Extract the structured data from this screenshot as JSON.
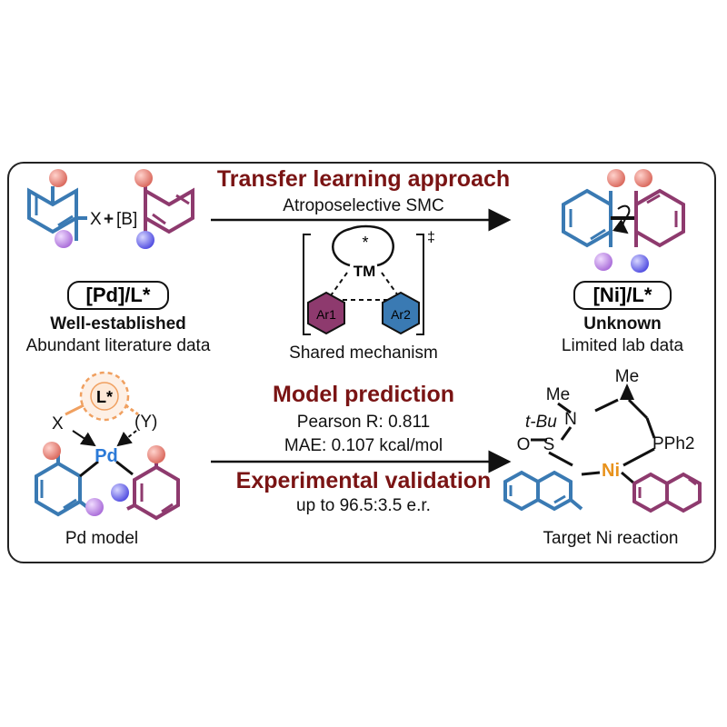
{
  "top": {
    "heading": "Transfer learning approach",
    "subheading": "Atroposelective SMC",
    "left_reagent_x": "X",
    "left_reagent_plus": "+",
    "left_reagent_b": "[B]",
    "left_catalyst": "[Pd]/L*",
    "left_status": "Well-established",
    "left_note": "Abundant literature data",
    "right_catalyst": "[Ni]/L*",
    "right_status": "Unknown",
    "right_note": "Limited lab data",
    "ts_metal": "TM",
    "ts_star": "*",
    "ts_dagger": "‡",
    "ts_ar1": "Ar1",
    "ts_ar2": "Ar2",
    "ts_caption": "Shared mechanism"
  },
  "bottom": {
    "model_heading": "Model prediction",
    "pearson": "Pearson R: 0.811",
    "mae": "MAE: 0.107 kcal/mol",
    "validation_heading": "Experimental validation",
    "er": "up to 96.5:3.5 e.r.",
    "pd_ligand": "L*",
    "pd_x": "X",
    "pd_y": "(Y)",
    "pd_metal": "Pd",
    "pd_caption": "Pd model",
    "ni_me1": "Me",
    "ni_me2": "Me",
    "ni_tbu": "t-Bu",
    "ni_n": "N",
    "ni_o": "O",
    "ni_s": "S",
    "ni_pph2": "PPh2",
    "ni_metal": "Ni",
    "ni_caption": "Target Ni reaction"
  },
  "colors": {
    "heading": "#7a1414",
    "ring_blue": "#3a7ab3",
    "ring_purple": "#8e3a6e",
    "ball_salmon": "#e88f85",
    "ball_violet": "#c89ce6",
    "ball_blue": "#7f7df0",
    "pd_blue": "#2b7ad8",
    "ni_orange": "#e8921c",
    "ligand_orange": "#f0a060"
  }
}
